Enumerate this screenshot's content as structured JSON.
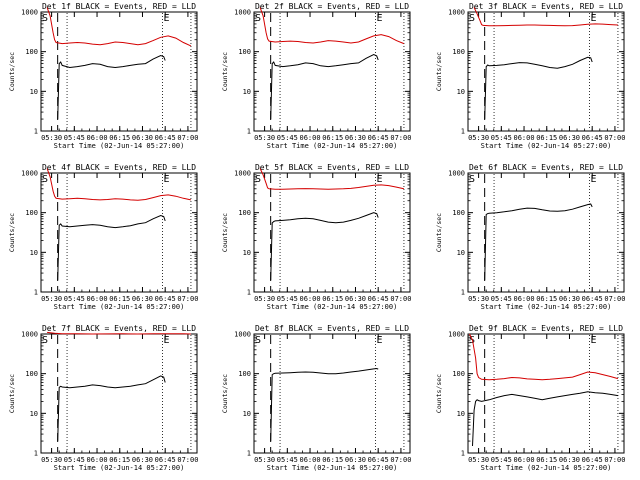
{
  "colors": {
    "events": "#000000",
    "lld": "#d40000",
    "frame": "#000000",
    "background": "#ffffff"
  },
  "common": {
    "ylabel": "Counts/sec",
    "xlabel": "Start Time (02-Jun-14 05:27:00)",
    "xticks": [
      "05:30",
      "05:45",
      "06:00",
      "06:15",
      "06:30",
      "06:45",
      "07:00"
    ],
    "yticks": [
      "1",
      "10",
      "100",
      "1000"
    ],
    "start_marker": "S",
    "end_marker": "E"
  },
  "chart_data": [
    {
      "type": "line",
      "title": "Det 1f BLACK = Events, RED = LLD",
      "yscale": "log",
      "xunit": "minutes after 05:27:00",
      "xlim": [
        -4,
        99
      ],
      "ylim": [
        1,
        1000
      ],
      "markers": {
        "dashed": 7,
        "dotted": [
          13.2,
          76.2,
          95
        ]
      },
      "series": [
        {
          "name": "LLD",
          "color": "red",
          "x": [
            0,
            2,
            4,
            5,
            6,
            10,
            15,
            20,
            25,
            30,
            35,
            40,
            45,
            50,
            55,
            60,
            65,
            70,
            75,
            80,
            85,
            90,
            95
          ],
          "y": [
            1300,
            800,
            300,
            200,
            170,
            160,
            165,
            170,
            165,
            155,
            150,
            160,
            175,
            170,
            160,
            150,
            160,
            190,
            230,
            250,
            220,
            170,
            140
          ]
        },
        {
          "name": "Events",
          "color": "black",
          "x": [
            7,
            8,
            9,
            10,
            15,
            20,
            25,
            30,
            35,
            40,
            45,
            50,
            55,
            60,
            65,
            70,
            75,
            77,
            78
          ],
          "y": [
            2,
            50,
            55,
            45,
            40,
            42,
            45,
            50,
            48,
            42,
            40,
            42,
            45,
            48,
            50,
            65,
            80,
            75,
            60
          ]
        }
      ]
    },
    {
      "type": "line",
      "title": "Det 2f BLACK = Events, RED = LLD",
      "yscale": "log",
      "xunit": "minutes after 05:27:00",
      "xlim": [
        -4,
        99
      ],
      "ylim": [
        1,
        1000
      ],
      "markers": {
        "dashed": 7,
        "dotted": [
          13.2,
          76.2,
          95
        ]
      },
      "series": [
        {
          "name": "LLD",
          "color": "red",
          "x": [
            0,
            2,
            4,
            5,
            6,
            10,
            15,
            20,
            25,
            30,
            35,
            40,
            45,
            50,
            55,
            60,
            65,
            70,
            75,
            80,
            85,
            90,
            95
          ],
          "y": [
            1300,
            800,
            300,
            210,
            185,
            175,
            180,
            185,
            180,
            170,
            165,
            175,
            190,
            185,
            175,
            165,
            175,
            210,
            250,
            270,
            240,
            190,
            160
          ]
        },
        {
          "name": "Events",
          "color": "black",
          "x": [
            7,
            8,
            9,
            10,
            15,
            20,
            25,
            30,
            35,
            40,
            45,
            50,
            55,
            60,
            65,
            70,
            75,
            77,
            78
          ],
          "y": [
            2,
            50,
            55,
            45,
            42,
            44,
            47,
            52,
            50,
            44,
            42,
            44,
            47,
            50,
            52,
            68,
            85,
            78,
            62
          ]
        }
      ]
    },
    {
      "type": "line",
      "title": "Det 3f BLACK = Events, RED = LLD",
      "yscale": "log",
      "xunit": "minutes after 05:27:00",
      "xlim": [
        -4,
        99
      ],
      "ylim": [
        1,
        1000
      ],
      "markers": {
        "dashed": 7,
        "dotted": [
          13.2,
          76.2,
          95
        ]
      },
      "series": [
        {
          "name": "LLD",
          "color": "red",
          "x": [
            0,
            2,
            4,
            5,
            6,
            10,
            15,
            20,
            25,
            30,
            35,
            40,
            45,
            50,
            55,
            60,
            65,
            70,
            75,
            80,
            85,
            90,
            95
          ],
          "y": [
            1300,
            900,
            600,
            480,
            460,
            450,
            450,
            455,
            460,
            465,
            470,
            470,
            465,
            460,
            455,
            450,
            455,
            470,
            490,
            500,
            495,
            480,
            470
          ]
        },
        {
          "name": "Events",
          "color": "black",
          "x": [
            7,
            8,
            9,
            10,
            15,
            20,
            25,
            30,
            35,
            40,
            45,
            50,
            55,
            60,
            65,
            70,
            75,
            77,
            78
          ],
          "y": [
            2,
            42,
            46,
            44,
            45,
            47,
            50,
            53,
            52,
            48,
            44,
            40,
            38,
            42,
            48,
            60,
            72,
            70,
            55
          ]
        }
      ]
    },
    {
      "type": "line",
      "title": "Det 4f BLACK = Events, RED = LLD",
      "yscale": "log",
      "xunit": "minutes after 05:27:00",
      "xlim": [
        -4,
        99
      ],
      "ylim": [
        1,
        1000
      ],
      "markers": {
        "dashed": 7,
        "dotted": [
          13.2,
          76.2,
          95
        ]
      },
      "series": [
        {
          "name": "LLD",
          "color": "red",
          "x": [
            0,
            2,
            4,
            5,
            6,
            10,
            15,
            20,
            25,
            30,
            35,
            40,
            45,
            50,
            55,
            60,
            65,
            70,
            75,
            80,
            85,
            90,
            95
          ],
          "y": [
            1300,
            800,
            350,
            260,
            230,
            220,
            225,
            230,
            225,
            215,
            210,
            215,
            225,
            220,
            210,
            205,
            215,
            240,
            270,
            280,
            260,
            230,
            210
          ]
        },
        {
          "name": "Events",
          "color": "black",
          "x": [
            7,
            8,
            9,
            10,
            15,
            20,
            25,
            30,
            35,
            40,
            45,
            50,
            55,
            60,
            65,
            70,
            75,
            77,
            78
          ],
          "y": [
            2,
            48,
            52,
            46,
            44,
            46,
            48,
            50,
            48,
            44,
            42,
            44,
            47,
            52,
            56,
            70,
            85,
            80,
            62
          ]
        }
      ]
    },
    {
      "type": "line",
      "title": "Det 5f BLACK = Events, RED = LLD",
      "yscale": "log",
      "xunit": "minutes after 05:27:00",
      "xlim": [
        -4,
        99
      ],
      "ylim": [
        1,
        1000
      ],
      "markers": {
        "dashed": 7,
        "dotted": [
          13.2,
          76.2,
          95
        ]
      },
      "series": [
        {
          "name": "LLD",
          "color": "red",
          "x": [
            0,
            2,
            4,
            5,
            6,
            10,
            15,
            20,
            25,
            30,
            35,
            40,
            45,
            50,
            55,
            60,
            65,
            70,
            75,
            80,
            85,
            90,
            95
          ],
          "y": [
            1300,
            900,
            550,
            420,
            400,
            390,
            390,
            395,
            400,
            405,
            400,
            395,
            390,
            395,
            400,
            410,
            430,
            460,
            490,
            500,
            480,
            440,
            400
          ]
        },
        {
          "name": "Events",
          "color": "black",
          "x": [
            7,
            8,
            9,
            10,
            15,
            20,
            25,
            30,
            35,
            40,
            45,
            50,
            55,
            60,
            65,
            70,
            75,
            77,
            78
          ],
          "y": [
            2,
            55,
            60,
            62,
            64,
            66,
            70,
            72,
            70,
            64,
            58,
            56,
            58,
            64,
            72,
            85,
            100,
            95,
            75
          ]
        }
      ]
    },
    {
      "type": "line",
      "title": "Det 6f BLACK = Events, RED = LLD",
      "yscale": "log",
      "xunit": "minutes after 05:27:00",
      "xlim": [
        -4,
        99
      ],
      "ylim": [
        1,
        1000
      ],
      "markers": {
        "dashed": 7,
        "dotted": [
          13.2,
          76.2,
          95
        ]
      },
      "series": [
        {
          "name": "Events",
          "color": "black",
          "x": [
            7,
            8,
            9,
            10,
            15,
            20,
            25,
            30,
            35,
            40,
            45,
            50,
            55,
            60,
            65,
            70,
            75,
            77,
            78
          ],
          "y": [
            2,
            90,
            95,
            97,
            100,
            105,
            112,
            122,
            130,
            128,
            118,
            110,
            108,
            112,
            122,
            140,
            160,
            165,
            140
          ]
        }
      ]
    },
    {
      "type": "line",
      "title": "Det 7f BLACK = Events, RED = LLD",
      "yscale": "log",
      "xunit": "minutes after 05:27:00",
      "xlim": [
        -4,
        99
      ],
      "ylim": [
        1,
        1000
      ],
      "markers": {
        "dashed": 7,
        "dotted": [
          13.2,
          76.2,
          95
        ]
      },
      "series": [
        {
          "name": "LLD",
          "color": "red",
          "x": [
            0,
            5,
            10,
            20,
            30,
            40,
            50,
            60,
            70,
            80,
            90,
            95
          ],
          "y": [
            1100,
            1050,
            1020,
            1010,
            1000,
            1005,
            1010,
            1000,
            1015,
            1020,
            1010,
            1000
          ]
        },
        {
          "name": "Events",
          "color": "black",
          "x": [
            7,
            8,
            9,
            10,
            15,
            20,
            25,
            30,
            35,
            40,
            45,
            50,
            55,
            60,
            65,
            70,
            75,
            77,
            78
          ],
          "y": [
            2,
            45,
            48,
            46,
            44,
            46,
            48,
            52,
            50,
            46,
            44,
            46,
            48,
            52,
            56,
            70,
            88,
            82,
            60
          ]
        }
      ]
    },
    {
      "type": "line",
      "title": "Det 8f BLACK = Events, RED = LLD",
      "yscale": "log",
      "xunit": "minutes after 05:27:00",
      "xlim": [
        -4,
        99
      ],
      "ylim": [
        1,
        1000
      ],
      "markers": {
        "dashed": 7,
        "dotted": [
          13.2,
          76.2,
          95
        ]
      },
      "series": [
        {
          "name": "Events",
          "color": "black",
          "x": [
            7,
            8,
            9,
            10,
            15,
            20,
            25,
            30,
            35,
            40,
            45,
            50,
            55,
            60,
            65,
            70,
            75,
            77,
            78
          ],
          "y": [
            2,
            95,
            100,
            102,
            104,
            106,
            108,
            110,
            108,
            104,
            100,
            100,
            104,
            110,
            116,
            124,
            132,
            135,
            130
          ]
        }
      ]
    },
    {
      "type": "line",
      "title": "Det 9f BLACK = Events, RED = LLD",
      "yscale": "log",
      "xunit": "minutes after 05:27:00",
      "xlim": [
        -4,
        99
      ],
      "ylim": [
        1,
        1000
      ],
      "markers": {
        "dashed": 7,
        "dotted": [
          13.2,
          76.2,
          95
        ]
      },
      "series": [
        {
          "name": "LLD",
          "color": "red",
          "x": [
            -3,
            -1,
            1,
            2,
            3,
            5,
            10,
            15,
            20,
            25,
            30,
            35,
            40,
            45,
            50,
            55,
            60,
            65,
            70,
            75,
            80,
            85,
            90,
            95
          ],
          "y": [
            1000,
            700,
            250,
            100,
            80,
            72,
            70,
            72,
            75,
            80,
            78,
            74,
            72,
            70,
            72,
            75,
            78,
            82,
            95,
            110,
            105,
            95,
            85,
            75
          ]
        },
        {
          "name": "Events",
          "color": "black",
          "x": [
            -1,
            0,
            1,
            2,
            3,
            5,
            10,
            15,
            20,
            25,
            30,
            35,
            40,
            45,
            50,
            55,
            60,
            65,
            70,
            75,
            80,
            85,
            90,
            95
          ],
          "y": [
            1.5,
            12,
            20,
            22,
            21,
            20,
            22,
            25,
            28,
            30,
            28,
            26,
            24,
            22,
            24,
            26,
            28,
            30,
            32,
            35,
            33,
            32,
            30,
            28
          ]
        }
      ]
    }
  ]
}
